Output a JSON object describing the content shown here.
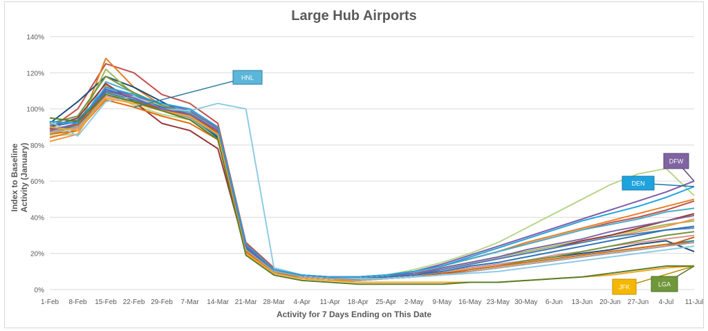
{
  "chart_data": {
    "type": "line",
    "title": "Large Hub Airports",
    "xlabel": "Activity for 7 Days Ending on This Date",
    "ylabel": "Index to Baseline Activity (January)",
    "ylim": [
      0,
      140
    ],
    "yticks": [
      "0%",
      "20%",
      "40%",
      "60%",
      "80%",
      "100%",
      "120%",
      "140%"
    ],
    "ytick_values": [
      0,
      20,
      40,
      60,
      80,
      100,
      120,
      140
    ],
    "x": [
      "1-Feb",
      "8-Feb",
      "15-Feb",
      "22-Feb",
      "29-Feb",
      "7-Mar",
      "14-Mar",
      "21-Mar",
      "28-Mar",
      "4-Apr",
      "11-Apr",
      "18-Apr",
      "25-Apr",
      "2-May",
      "9-May",
      "16-May",
      "23-May",
      "30-May",
      "6-Jun",
      "13-Jun",
      "20-Jun",
      "27-Jun",
      "4-Jul",
      "11-Jul"
    ],
    "grid": true,
    "callouts": [
      {
        "label": "HNL",
        "color": "#5bb6d9",
        "border": "#2e7ea6"
      },
      {
        "label": "DFW",
        "color": "#8064a2",
        "border": "#5c4679"
      },
      {
        "label": "DEN",
        "color": "#1fa3de",
        "border": "#1479a8"
      },
      {
        "label": "JFK",
        "color": "#f5b800",
        "border": "#c08e00"
      },
      {
        "label": "LGA",
        "color": "#70973a",
        "border": "#4f6d28"
      }
    ],
    "series": [
      {
        "name": "HNL",
        "color": "#8ecae6",
        "values": [
          93,
          85,
          104,
          107,
          100,
          99,
          103,
          100,
          12,
          8,
          7,
          6,
          6,
          7,
          8,
          9,
          10,
          12,
          14,
          16,
          18,
          20,
          22,
          24
        ]
      },
      {
        "name": "DFW",
        "color": "#7f5ba6",
        "values": [
          88,
          92,
          110,
          106,
          100,
          97,
          88,
          24,
          11,
          8,
          7,
          7,
          8,
          10,
          14,
          19,
          24,
          29,
          34,
          39,
          44,
          49,
          54,
          60
        ]
      },
      {
        "name": "DEN",
        "color": "#1fa3de",
        "values": [
          93,
          92,
          112,
          108,
          103,
          100,
          90,
          25,
          11,
          8,
          7,
          7,
          8,
          10,
          13,
          18,
          23,
          28,
          33,
          38,
          42,
          46,
          51,
          57
        ]
      },
      {
        "name": "JFK",
        "color": "#f5a623",
        "values": [
          90,
          88,
          106,
          103,
          99,
          96,
          86,
          20,
          9,
          6,
          5,
          4,
          4,
          4,
          4,
          4,
          4,
          5,
          6,
          7,
          8,
          10,
          12,
          13
        ]
      },
      {
        "name": "LGA",
        "color": "#5a7d2a",
        "values": [
          95,
          93,
          108,
          104,
          99,
          94,
          83,
          19,
          8,
          5,
          4,
          3,
          3,
          3,
          3,
          4,
          4,
          5,
          6,
          7,
          9,
          11,
          13,
          13
        ]
      },
      {
        "color": "#b7d58a",
        "values": [
          85,
          86,
          110,
          102,
          97,
          94,
          85,
          22,
          10,
          8,
          7,
          7,
          8,
          11,
          15,
          20,
          26,
          34,
          42,
          50,
          58,
          64,
          67,
          52
        ]
      },
      {
        "color": "#c0504d",
        "values": [
          89,
          100,
          125,
          120,
          108,
          103,
          92,
          26,
          12,
          8,
          7,
          7,
          8,
          10,
          13,
          17,
          21,
          25,
          29,
          33,
          37,
          40,
          44,
          49
        ]
      },
      {
        "color": "#e67e22",
        "values": [
          84,
          88,
          128,
          112,
          102,
          98,
          90,
          24,
          11,
          8,
          7,
          7,
          8,
          10,
          13,
          17,
          21,
          26,
          30,
          34,
          38,
          42,
          46,
          50
        ]
      },
      {
        "color": "#1f4e79",
        "values": [
          92,
          104,
          118,
          112,
          104,
          96,
          84,
          22,
          10,
          7,
          6,
          6,
          7,
          8,
          10,
          12,
          14,
          16,
          18,
          20,
          22,
          25,
          27,
          21
        ]
      },
      {
        "color": "#4bacc6",
        "values": [
          88,
          90,
          115,
          109,
          102,
          98,
          88,
          23,
          11,
          8,
          7,
          7,
          8,
          10,
          13,
          17,
          21,
          25,
          29,
          33,
          36,
          39,
          43,
          45
        ]
      },
      {
        "color": "#9bbb59",
        "values": [
          86,
          90,
          122,
          108,
          101,
          97,
          88,
          23,
          10,
          7,
          6,
          6,
          7,
          9,
          12,
          15,
          18,
          21,
          24,
          27,
          30,
          33,
          36,
          38
        ]
      },
      {
        "color": "#f79646",
        "values": [
          82,
          86,
          113,
          106,
          100,
          96,
          87,
          22,
          10,
          7,
          6,
          6,
          7,
          9,
          11,
          14,
          17,
          20,
          23,
          26,
          29,
          32,
          35,
          39
        ]
      },
      {
        "color": "#953735",
        "values": [
          90,
          95,
          114,
          104,
          92,
          88,
          78,
          21,
          9,
          7,
          6,
          6,
          7,
          8,
          11,
          14,
          17,
          20,
          23,
          27,
          30,
          34,
          38,
          42
        ]
      },
      {
        "color": "#4f81bd",
        "values": [
          91,
          94,
          110,
          106,
          101,
          97,
          87,
          23,
          10,
          7,
          6,
          6,
          7,
          9,
          11,
          14,
          17,
          20,
          23,
          26,
          29,
          31,
          33,
          34
        ]
      },
      {
        "color": "#8064a2",
        "values": [
          87,
          92,
          112,
          107,
          103,
          99,
          89,
          24,
          11,
          8,
          7,
          7,
          8,
          9,
          12,
          15,
          18,
          22,
          25,
          28,
          32,
          35,
          38,
          41
        ]
      },
      {
        "color": "#31859c",
        "values": [
          89,
          90,
          109,
          105,
          100,
          95,
          85,
          22,
          10,
          7,
          6,
          5,
          6,
          7,
          9,
          11,
          13,
          15,
          17,
          19,
          21,
          23,
          25,
          27
        ]
      },
      {
        "color": "#d99694",
        "values": [
          88,
          89,
          107,
          104,
          100,
          96,
          87,
          23,
          10,
          7,
          6,
          6,
          7,
          8,
          10,
          12,
          14,
          16,
          19,
          21,
          24,
          26,
          28,
          30
        ]
      },
      {
        "color": "#76923c",
        "values": [
          92,
          96,
          118,
          109,
          102,
          97,
          86,
          22,
          10,
          7,
          6,
          5,
          6,
          7,
          9,
          11,
          13,
          16,
          18,
          21,
          24,
          27,
          30,
          32
        ]
      },
      {
        "color": "#e46c0a",
        "values": [
          86,
          88,
          105,
          101,
          96,
          92,
          83,
          21,
          9,
          6,
          5,
          5,
          6,
          7,
          9,
          11,
          13,
          15,
          17,
          19,
          21,
          23,
          25,
          26
        ]
      },
      {
        "color": "#2e75b6",
        "values": [
          90,
          93,
          111,
          106,
          101,
          97,
          88,
          23,
          10,
          7,
          6,
          6,
          7,
          8,
          10,
          13,
          15,
          18,
          21,
          24,
          27,
          30,
          33,
          35
        ]
      },
      {
        "color": "#c55a11",
        "values": [
          89,
          91,
          108,
          104,
          100,
          96,
          87,
          22,
          10,
          7,
          6,
          6,
          6,
          7,
          9,
          10,
          12,
          14,
          16,
          18,
          20,
          22,
          24,
          29
        ]
      },
      {
        "color": "#a5a5a5",
        "values": [
          87,
          90,
          106,
          103,
          99,
          95,
          86,
          22,
          10,
          7,
          6,
          5,
          6,
          7,
          8,
          10,
          12,
          14,
          16,
          18,
          20,
          22,
          24,
          26
        ]
      }
    ]
  }
}
